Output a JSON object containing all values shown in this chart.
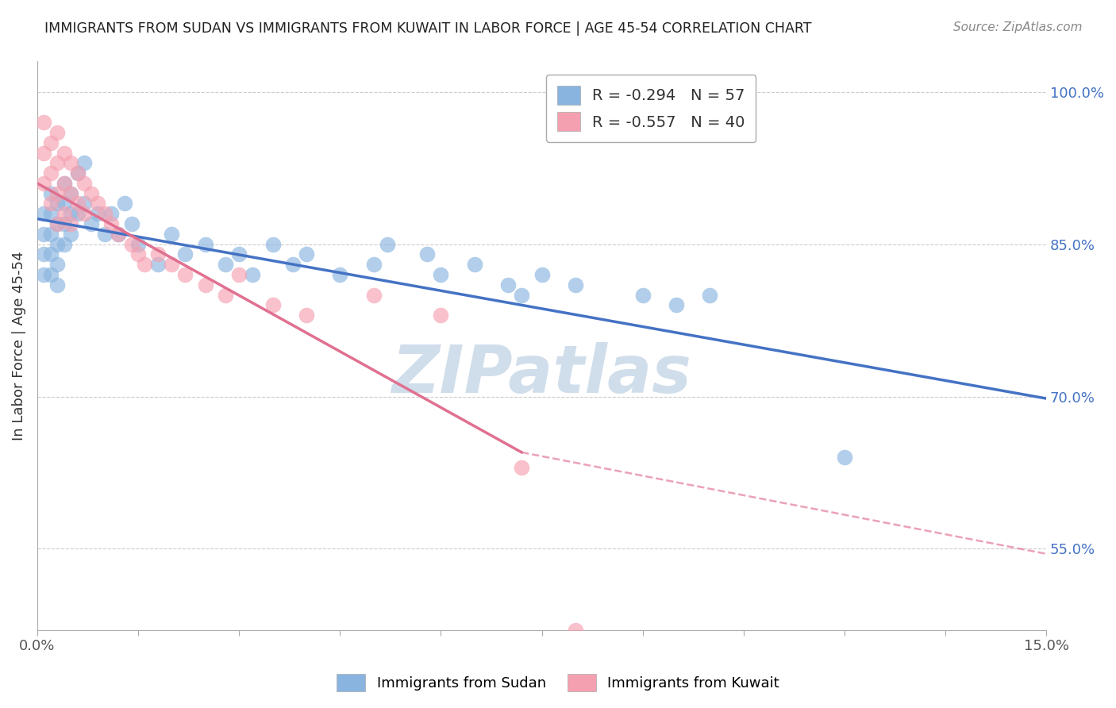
{
  "title": "IMMIGRANTS FROM SUDAN VS IMMIGRANTS FROM KUWAIT IN LABOR FORCE | AGE 45-54 CORRELATION CHART",
  "source": "Source: ZipAtlas.com",
  "ylabel": "In Labor Force | Age 45-54",
  "xlim": [
    0.0,
    0.15
  ],
  "ylim": [
    0.47,
    1.03
  ],
  "ytick_labels": [
    "55.0%",
    "70.0%",
    "85.0%",
    "100.0%"
  ],
  "yticks": [
    0.55,
    0.7,
    0.85,
    1.0
  ],
  "grid_color": "#cccccc",
  "watermark": "ZIPatlas",
  "watermark_color": "#c8d8e8",
  "sudan_color": "#89b4e0",
  "kuwait_color": "#f5a0b0",
  "sudan_line_color": "#4472c4",
  "kuwait_line_color": "#e07090",
  "sudan_R": -0.294,
  "sudan_N": 57,
  "kuwait_R": -0.557,
  "kuwait_N": 40,
  "legend_label_sudan": "Immigrants from Sudan",
  "legend_label_kuwait": "Immigrants from Kuwait",
  "sudan_x": [
    0.001,
    0.001,
    0.001,
    0.001,
    0.002,
    0.002,
    0.002,
    0.002,
    0.002,
    0.003,
    0.003,
    0.003,
    0.003,
    0.003,
    0.004,
    0.004,
    0.004,
    0.004,
    0.005,
    0.005,
    0.005,
    0.006,
    0.006,
    0.007,
    0.007,
    0.008,
    0.009,
    0.01,
    0.011,
    0.012,
    0.013,
    0.014,
    0.015,
    0.018,
    0.02,
    0.022,
    0.025,
    0.028,
    0.03,
    0.032,
    0.035,
    0.038,
    0.04,
    0.045,
    0.05,
    0.052,
    0.058,
    0.06,
    0.065,
    0.07,
    0.072,
    0.075,
    0.08,
    0.09,
    0.095,
    0.1,
    0.12
  ],
  "sudan_y": [
    0.88,
    0.86,
    0.84,
    0.82,
    0.9,
    0.88,
    0.86,
    0.84,
    0.82,
    0.89,
    0.87,
    0.85,
    0.83,
    0.81,
    0.91,
    0.89,
    0.87,
    0.85,
    0.9,
    0.88,
    0.86,
    0.92,
    0.88,
    0.93,
    0.89,
    0.87,
    0.88,
    0.86,
    0.88,
    0.86,
    0.89,
    0.87,
    0.85,
    0.83,
    0.86,
    0.84,
    0.85,
    0.83,
    0.84,
    0.82,
    0.85,
    0.83,
    0.84,
    0.82,
    0.83,
    0.85,
    0.84,
    0.82,
    0.83,
    0.81,
    0.8,
    0.82,
    0.81,
    0.8,
    0.79,
    0.8,
    0.64
  ],
  "kuwait_x": [
    0.001,
    0.001,
    0.001,
    0.002,
    0.002,
    0.002,
    0.003,
    0.003,
    0.003,
    0.003,
    0.004,
    0.004,
    0.004,
    0.005,
    0.005,
    0.005,
    0.006,
    0.006,
    0.007,
    0.007,
    0.008,
    0.009,
    0.01,
    0.011,
    0.012,
    0.014,
    0.015,
    0.016,
    0.018,
    0.02,
    0.022,
    0.025,
    0.028,
    0.03,
    0.035,
    0.04,
    0.05,
    0.06,
    0.072,
    0.08
  ],
  "kuwait_y": [
    0.97,
    0.94,
    0.91,
    0.95,
    0.92,
    0.89,
    0.96,
    0.93,
    0.9,
    0.87,
    0.94,
    0.91,
    0.88,
    0.93,
    0.9,
    0.87,
    0.92,
    0.89,
    0.91,
    0.88,
    0.9,
    0.89,
    0.88,
    0.87,
    0.86,
    0.85,
    0.84,
    0.83,
    0.84,
    0.83,
    0.82,
    0.81,
    0.8,
    0.82,
    0.79,
    0.78,
    0.8,
    0.78,
    0.63,
    0.47
  ],
  "blue_line_x0": 0.0,
  "blue_line_y0": 0.875,
  "blue_line_x1": 0.15,
  "blue_line_y1": 0.698,
  "pink_line_x0": 0.0,
  "pink_line_y0": 0.91,
  "pink_line_x1_solid": 0.072,
  "pink_line_y1_solid": 0.645,
  "pink_line_x1_dash": 0.15,
  "pink_line_y1_dash": 0.545
}
